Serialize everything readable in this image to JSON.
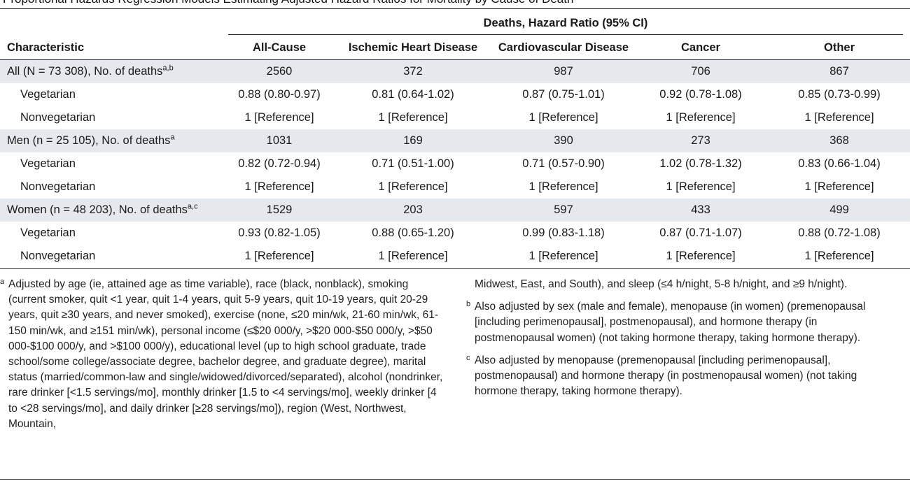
{
  "clipped_title": "Proportional Hazards Regression Models Estimating Adjusted Hazard Ratios for Mortality by Cause of Death",
  "table": {
    "group_header": "Deaths, Hazard Ratio (95% CI)",
    "characteristic_header": "Characteristic",
    "columns": [
      "All-Cause",
      "Ischemic Heart Disease",
      "Cardiovascular Disease",
      "Cancer",
      "Other"
    ],
    "rows": [
      {
        "label": "All (N = 73 308), No. of deaths",
        "sup": "a,b",
        "values": [
          "2560",
          "372",
          "987",
          "706",
          "867"
        ]
      },
      {
        "label": "Vegetarian",
        "values": [
          "0.88 (0.80-0.97)",
          "0.81 (0.64-1.02)",
          "0.87 (0.75-1.01)",
          "0.92 (0.78-1.08)",
          "0.85 (0.73-0.99)"
        ]
      },
      {
        "label": "Nonvegetarian",
        "values": [
          "1 [Reference]",
          "1 [Reference]",
          "1 [Reference]",
          "1 [Reference]",
          "1 [Reference]"
        ]
      },
      {
        "label": "Men (n = 25 105), No. of deaths",
        "sup": "a",
        "values": [
          "1031",
          "169",
          "390",
          "273",
          "368"
        ]
      },
      {
        "label": "Vegetarian",
        "values": [
          "0.82 (0.72-0.94)",
          "0.71 (0.51-1.00)",
          "0.71 (0.57-0.90)",
          "1.02 (0.78-1.32)",
          "0.83 (0.66-1.04)"
        ]
      },
      {
        "label": "Nonvegetarian",
        "values": [
          "1 [Reference]",
          "1 [Reference]",
          "1 [Reference]",
          "1 [Reference]",
          "1 [Reference]"
        ]
      },
      {
        "label": "Women (n = 48 203), No. of deaths",
        "sup": "a,c",
        "values": [
          "1529",
          "203",
          "597",
          "433",
          "499"
        ]
      },
      {
        "label": "Vegetarian",
        "values": [
          "0.93 (0.82-1.05)",
          "0.88 (0.65-1.20)",
          "0.99 (0.83-1.18)",
          "0.87 (0.71-1.07)",
          "0.88 (0.72-1.08)"
        ]
      },
      {
        "label": "Nonvegetarian",
        "values": [
          "1 [Reference]",
          "1 [Reference]",
          "1 [Reference]",
          "1 [Reference]",
          "1 [Reference]"
        ]
      }
    ]
  },
  "footnotes": {
    "a_mark": "a",
    "a_text_col1": "Adjusted by age (ie, attained age as time variable), race (black, nonblack), smoking (current smoker, quit <1 year, quit 1-4 years, quit 5-9 years, quit 10-19 years, quit 20-29 years, quit ≥30 years, and never smoked), exercise (none, ≤20 min/wk, 21-60 min/wk, 61-150 min/wk, and ≥151 min/wk), personal income (≤$20 000/y, >$20 000-$50 000/y, >$50 000-$100 000/y, and >$100 000/y), educational level (up to high school graduate, trade school/some college/associate degree, bachelor degree, and graduate degree), marital status (married/common-law and single/widowed/divorced/separated), alcohol (nondrinker, rare drinker [<1.5 servings/mo], monthly drinker [1.5 to <4 servings/mo], weekly drinker [4 to <28 servings/mo], and daily drinker [≥28 servings/mo]), region (West, Northwest, Mountain,",
    "a_text_col2": "Midwest, East, and South), and sleep (≤4 h/night, 5-8 h/night, and ≥9 h/night).",
    "b_mark": "b",
    "b_text": "Also adjusted by sex (male and female), menopause (in women) (premenopausal [including perimenopausal], postmenopausal), and hormone therapy (in postmenopausal women) (not taking hormone therapy, taking hormone therapy).",
    "c_mark": "c",
    "c_text": "Also adjusted by menopause (premenopausal [including perimenopausal], postmenopausal) and hormone therapy (in postmenopausal women) (not taking hormone therapy, taking hormone therapy)."
  }
}
